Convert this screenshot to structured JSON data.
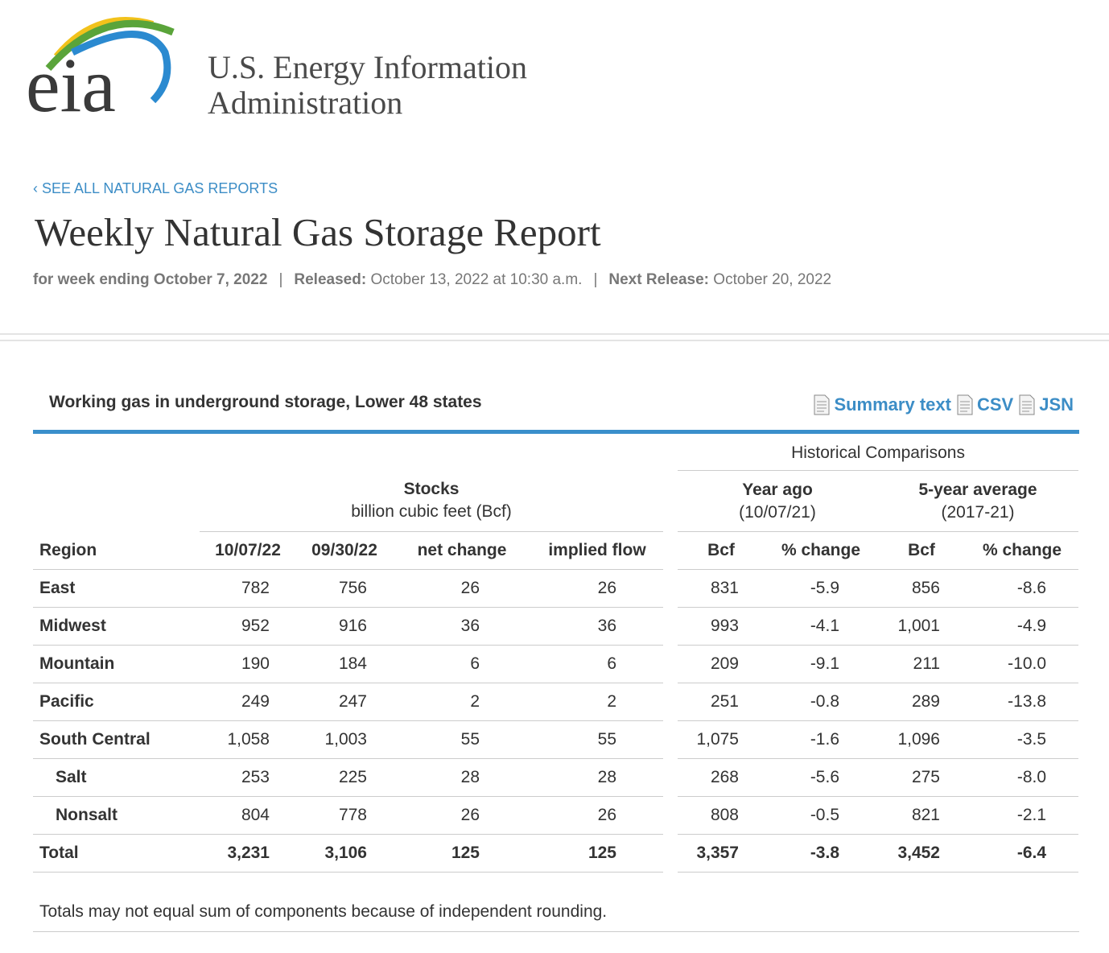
{
  "logo": {
    "mark": "eia",
    "name_lines": [
      "U.S. Energy Information",
      "Administration"
    ]
  },
  "breadcrumb": "‹ SEE ALL NATURAL GAS REPORTS",
  "header": {
    "title": "Weekly Natural Gas Storage Report",
    "week": "for week ending October 7, 2022",
    "separator": "|",
    "released_label": "Released:",
    "released": "October 13, 2022 at 10:30 a.m.",
    "next_label": "Next Release:",
    "next": "October 20, 2022"
  },
  "table": {
    "title": "Working gas in underground storage, Lower 48 states",
    "links": [
      "Summary text",
      "CSV",
      "JSN"
    ],
    "historical": "Historical Comparisons",
    "stocks": {
      "title": "Stocks",
      "subtitle": "billion cubic feet (Bcf)"
    },
    "year_ago": {
      "title": "Year ago",
      "subtitle": "(10/07/21)"
    },
    "five_year": {
      "title": "5-year average",
      "subtitle": "(2017-21)"
    },
    "columns": [
      "Region",
      "10/07/22",
      "09/30/22",
      "net change",
      "implied flow",
      "Bcf",
      "% change",
      "Bcf",
      "% change"
    ],
    "rows": [
      [
        "East",
        "782",
        "756",
        "26",
        "26",
        "831",
        "-5.9",
        "856",
        "-8.6"
      ],
      [
        "Midwest",
        "952",
        "916",
        "36",
        "36",
        "993",
        "-4.1",
        "1,001",
        "-4.9"
      ],
      [
        "Mountain",
        "190",
        "184",
        "6",
        "6",
        "209",
        "-9.1",
        "211",
        "-10.0"
      ],
      [
        "Pacific",
        "249",
        "247",
        "2",
        "2",
        "251",
        "-0.8",
        "289",
        "-13.8"
      ],
      [
        "South Central",
        "1,058",
        "1,003",
        "55",
        "55",
        "1,075",
        "-1.6",
        "1,096",
        "-3.5"
      ],
      [
        "Salt",
        "253",
        "225",
        "28",
        "28",
        "268",
        "-5.6",
        "275",
        "-8.0"
      ],
      [
        "Nonsalt",
        "804",
        "778",
        "26",
        "26",
        "808",
        "-0.5",
        "821",
        "-2.1"
      ],
      [
        "Total",
        "3,231",
        "3,106",
        "125",
        "125",
        "3,357",
        "-3.8",
        "3,452",
        "-6.4"
      ]
    ],
    "note": "Totals may not equal sum of components because of independent rounding."
  }
}
